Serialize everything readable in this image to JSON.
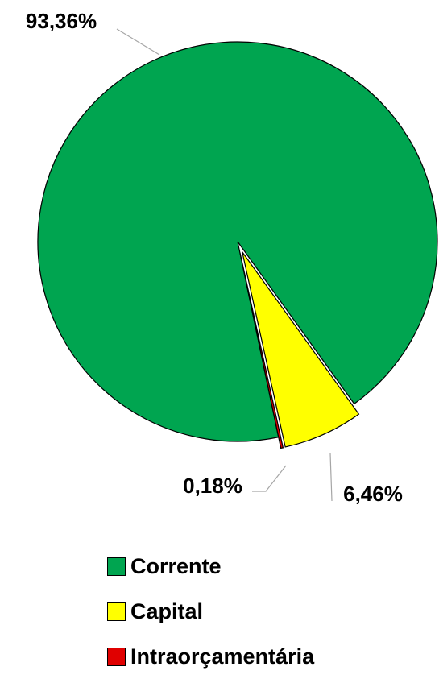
{
  "chart_data": {
    "type": "pie",
    "title": "",
    "slices": [
      {
        "name": "Corrente",
        "value": 93.36,
        "label": "93,36%",
        "color": "#00A550"
      },
      {
        "name": "Capital",
        "value": 6.46,
        "label": "6,46%",
        "color": "#FFFF00"
      },
      {
        "name": "Intraorçamentária",
        "value": 0.18,
        "label": "0,18%",
        "color": "#E00000"
      }
    ],
    "legend_position": "bottom"
  }
}
